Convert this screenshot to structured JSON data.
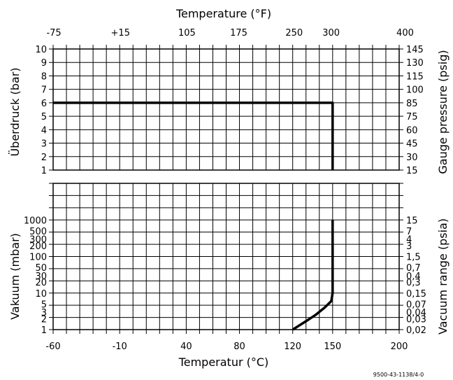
{
  "chart_data": {
    "type": "line",
    "top_axis_title": "Temperature (°F)",
    "top_ticks": [
      "-75",
      "+15",
      "105",
      "175",
      "250",
      "300",
      "400"
    ],
    "x_axis_title": "Temperatur (°C)",
    "x_ticks": [
      "-60",
      "-10",
      "40",
      "80",
      "120",
      "150",
      "200"
    ],
    "x_range": [
      -60,
      200
    ],
    "grid": true,
    "panels": [
      {
        "id": "pressure",
        "scale": "linear",
        "y_range": [
          1,
          10
        ],
        "left_axis_title": "Überdruck (bar)",
        "left_ticks": [
          "10",
          "9",
          "8",
          "7",
          "6",
          "5",
          "4",
          "3",
          "2",
          "1"
        ],
        "right_axis_title": "Gauge pressure (psig)",
        "right_ticks": [
          "145",
          "130",
          "115",
          "100",
          "85",
          "75",
          "60",
          "45",
          "30",
          "15"
        ],
        "series": [
          {
            "points": [
              [
                -60,
                6
              ],
              [
                150,
                6
              ],
              [
                150,
                1
              ]
            ]
          }
        ]
      },
      {
        "id": "vacuum",
        "scale": "log",
        "y_range": [
          1,
          1000
        ],
        "left_axis_title": "Vakuum (mbar)",
        "left_ticks": [
          "1000",
          "500",
          "300",
          "200",
          "100",
          "50",
          "30",
          "20",
          "10",
          "5",
          "3",
          "2",
          "1"
        ],
        "left_tick_values": [
          1000,
          500,
          300,
          200,
          100,
          50,
          30,
          20,
          10,
          5,
          3,
          2,
          1
        ],
        "right_axis_title": "Vacuum range (psia)",
        "right_ticks": [
          "15",
          "7",
          "4",
          "3",
          "1,5",
          "0,7",
          "0,4",
          "0,3",
          "0,15",
          "0,07",
          "0,04",
          "0,03",
          "0,02"
        ],
        "series": [
          {
            "points": [
              [
                150,
                1000
              ],
              [
                150,
                10
              ],
              [
                149,
                6
              ],
              [
                144,
                4
              ],
              [
                137,
                2.5
              ],
              [
                130,
                1.7
              ],
              [
                125,
                1.3
              ],
              [
                120,
                1
              ]
            ]
          }
        ]
      }
    ]
  },
  "footer_code": "9500-43-1138/4-0"
}
